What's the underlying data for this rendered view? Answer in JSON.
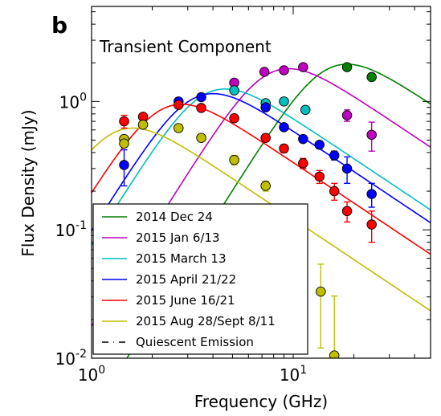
{
  "chart_data": {
    "type": "scatter",
    "panel_label": "b",
    "title": "Transient Component",
    "xlabel": "Frequency (GHz)",
    "ylabel": "Flux Density (mJy)",
    "xscale": "log",
    "yscale": "log",
    "xlim": [
      1,
      48
    ],
    "ylim": [
      0.01,
      5.5
    ],
    "x_ticks": [
      {
        "value": 1,
        "base": "10",
        "exp": "0"
      },
      {
        "value": 10,
        "base": "10",
        "exp": "1"
      }
    ],
    "y_ticks": [
      {
        "value": 0.01,
        "base": "10",
        "exp": "-2"
      },
      {
        "value": 0.1,
        "base": "10",
        "exp": "-1"
      },
      {
        "value": 1,
        "base": "10",
        "exp": "0"
      }
    ],
    "grid": false,
    "legend_position": "bottom-left",
    "series": [
      {
        "name": "2014 Dec 24",
        "color": "#008000",
        "model": {
          "peak_freq": 18.5,
          "peak_flux": 1.95
        },
        "points": [
          {
            "x": 18.5,
            "y": 1.85,
            "err": 0.03
          },
          {
            "x": 24.5,
            "y": 1.55,
            "err": 0.03
          }
        ]
      },
      {
        "name": "2015 Jan 6/13",
        "color": "#bf00bf",
        "model": {
          "peak_freq": 9.5,
          "peak_flux": 1.8
        },
        "points": [
          {
            "x": 5.1,
            "y": 1.4,
            "err": 0.03
          },
          {
            "x": 7.2,
            "y": 1.7,
            "err": 0.03
          },
          {
            "x": 9.0,
            "y": 1.75,
            "err": 0.03
          },
          {
            "x": 11.2,
            "y": 1.85,
            "err": 0.03
          },
          {
            "x": 18.5,
            "y": 0.78,
            "err": 0.08
          },
          {
            "x": 24.5,
            "y": 0.55,
            "err": 0.14
          }
        ]
      },
      {
        "name": "2015 March 13",
        "color": "#00bfbf",
        "model": {
          "peak_freq": 4.6,
          "peak_flux": 1.25
        },
        "points": [
          {
            "x": 5.1,
            "y": 1.22,
            "err": 0.03
          },
          {
            "x": 7.3,
            "y": 0.97,
            "err": 0.03
          },
          {
            "x": 9.0,
            "y": 1.0,
            "err": 0.03
          },
          {
            "x": 11.5,
            "y": 0.86,
            "err": 0.03
          }
        ]
      },
      {
        "name": "2015 April 21/22",
        "color": "#0000ff",
        "model": {
          "peak_freq": 4.0,
          "peak_flux": 1.15
        },
        "points": [
          {
            "x": 1.45,
            "y": 0.32,
            "err": 0.1
          },
          {
            "x": 2.7,
            "y": 1.0,
            "err": 0.03
          },
          {
            "x": 3.5,
            "y": 1.08,
            "err": 0.03
          },
          {
            "x": 7.3,
            "y": 0.9,
            "err": 0.03
          },
          {
            "x": 9.0,
            "y": 0.63,
            "err": 0.03
          },
          {
            "x": 11.2,
            "y": 0.51,
            "err": 0.03
          },
          {
            "x": 13.5,
            "y": 0.46,
            "err": 0.03
          },
          {
            "x": 16.0,
            "y": 0.38,
            "err": 0.03
          },
          {
            "x": 18.5,
            "y": 0.3,
            "err": 0.07
          },
          {
            "x": 24.5,
            "y": 0.19,
            "err": 0.04
          }
        ]
      },
      {
        "name": "2015 June 16/21",
        "color": "#ff0000",
        "model": {
          "peak_freq": 2.8,
          "peak_flux": 0.95
        },
        "points": [
          {
            "x": 1.45,
            "y": 0.7,
            "err": 0.08
          },
          {
            "x": 1.8,
            "y": 0.76,
            "err": 0.03
          },
          {
            "x": 2.7,
            "y": 0.94,
            "err": 0.03
          },
          {
            "x": 3.5,
            "y": 0.89,
            "err": 0.03
          },
          {
            "x": 5.1,
            "y": 0.74,
            "err": 0.03
          },
          {
            "x": 7.3,
            "y": 0.52,
            "err": 0.03
          },
          {
            "x": 9.0,
            "y": 0.43,
            "err": 0.03
          },
          {
            "x": 11.2,
            "y": 0.33,
            "err": 0.03
          },
          {
            "x": 13.5,
            "y": 0.26,
            "err": 0.03
          },
          {
            "x": 16.0,
            "y": 0.2,
            "err": 0.03
          },
          {
            "x": 18.5,
            "y": 0.14,
            "err": 0.025
          },
          {
            "x": 24.5,
            "y": 0.11,
            "err": 0.03
          }
        ]
      },
      {
        "name": "2015 Aug 28/Sept 8/11",
        "color": "#bfbf00",
        "model": {
          "peak_freq": 1.6,
          "peak_flux": 0.62
        },
        "points": [
          {
            "x": 1.45,
            "y": 0.51,
            "err": 0.03
          },
          {
            "x": 1.45,
            "y": 0.47,
            "err": 0.03
          },
          {
            "x": 1.8,
            "y": 0.66,
            "err": 0.03
          },
          {
            "x": 2.7,
            "y": 0.62,
            "err": 0.03
          },
          {
            "x": 3.5,
            "y": 0.52,
            "err": 0.03
          },
          {
            "x": 5.1,
            "y": 0.35,
            "err": 0.03
          },
          {
            "x": 7.3,
            "y": 0.22,
            "err": 0.02
          },
          {
            "x": 13.7,
            "y": 0.033,
            "err": 0.021
          },
          {
            "x": 16.0,
            "y": 0.0105,
            "err": 0.02
          }
        ]
      },
      {
        "name": "Quiescent Emission",
        "color": "#000000",
        "dashed": true,
        "points": []
      }
    ]
  }
}
